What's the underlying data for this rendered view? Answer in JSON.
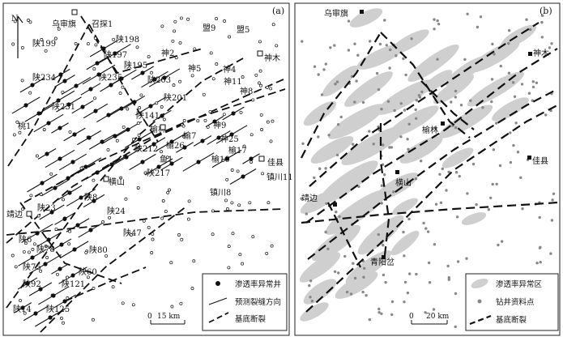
{
  "map_a": {
    "label": "(a)",
    "north": "N",
    "well_labels": [
      "乌审旗",
      "召探1",
      "陕199",
      "陕198",
      "陕197",
      "陕195",
      "神2",
      "盟9",
      "盟5",
      "神木",
      "陕234",
      "陕235",
      "陕203",
      "神5",
      "神4",
      "神11",
      "神8",
      "陕231",
      "陕201",
      "陕141",
      "桃1",
      "神9",
      "榆林",
      "榆7",
      "神25",
      "榆26",
      "榆17",
      "陕212",
      "陕217",
      "鱼1",
      "榆10",
      "佳县",
      "镇川11",
      "镇川8",
      "横山",
      "陕8",
      "陕23",
      "陕24",
      "靖边",
      "陕47",
      "陕6",
      "陕78",
      "陕80",
      "陕75",
      "陕60",
      "陕92",
      "陕121",
      "陕14",
      "陕125"
    ],
    "legend": {
      "well": "渗透率异常井",
      "fracture": "预测裂缝方向",
      "fault": "基底断裂"
    },
    "scale": {
      "zero": "0",
      "label": "15 km"
    }
  },
  "map_b": {
    "label": "(b)",
    "cities": [
      "乌审旗",
      "神木",
      "榆林",
      "佳县",
      "横山",
      "靖边",
      "青阳岔"
    ],
    "legend": {
      "anomaly": "渗透率异常区",
      "well": "钻井资料点",
      "fault": "基底断裂"
    },
    "scale": {
      "zero": "0",
      "label": "20 km"
    }
  }
}
